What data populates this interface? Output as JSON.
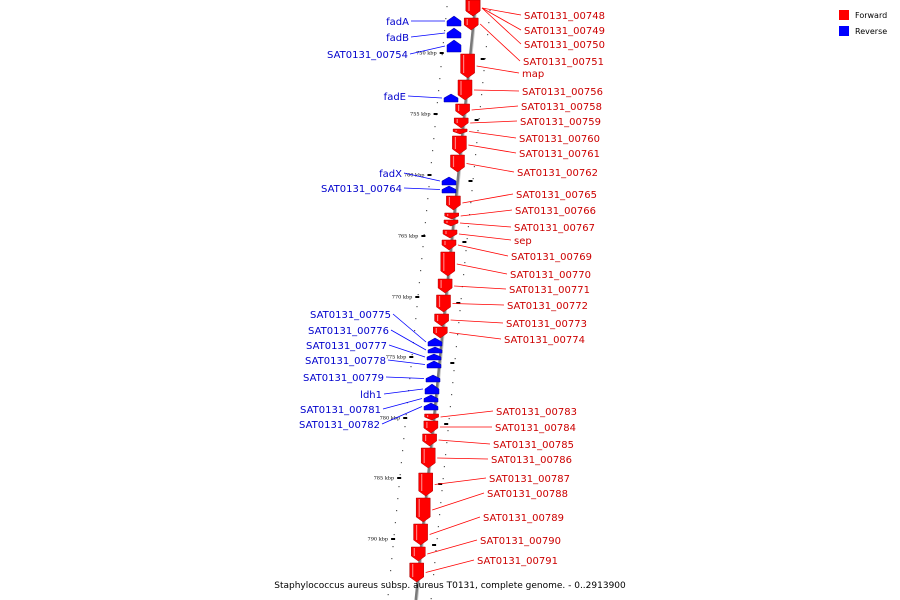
{
  "caption": "Staphylococcus aureus subsp. aureus T0131, complete genome. - 0..2913900",
  "legend": [
    {
      "label": "Forward",
      "color": "#ff0000"
    },
    {
      "label": "Reverse",
      "color": "#0000ff"
    }
  ],
  "colors": {
    "forward": "#ff0000",
    "reverse": "#0000ff",
    "backbone": "#7a7a7a"
  },
  "kbp_marks": [
    {
      "label": "750 kbp",
      "kbp": 750
    },
    {
      "label": "755 kbp",
      "kbp": 755
    },
    {
      "label": "760 kbp",
      "kbp": 760
    },
    {
      "label": "765 kbp",
      "kbp": 765
    },
    {
      "label": "770 kbp",
      "kbp": 770
    },
    {
      "label": "775 kbp",
      "kbp": 775
    },
    {
      "label": "780 kbp",
      "kbp": 780
    },
    {
      "label": "785 kbp",
      "kbp": 785
    },
    {
      "label": "790 kbp",
      "kbp": 790
    }
  ],
  "reverse_genes": [
    "fadA",
    "fadB",
    "SAT0131_00754",
    "fadE",
    "fadX",
    "SAT0131_00764",
    "SAT0131_00775",
    "SAT0131_00776",
    "SAT0131_00777",
    "SAT0131_00778",
    "SAT0131_00779",
    "ldh1",
    "SAT0131_00781",
    "SAT0131_00782"
  ],
  "forward_genes": [
    "SAT0131_00748",
    "SAT0131_00749",
    "SAT0131_00750",
    "SAT0131_00751",
    "map",
    "SAT0131_00756",
    "SAT0131_00758",
    "SAT0131_00759",
    "SAT0131_00760",
    "SAT0131_00761",
    "SAT0131_00762",
    "SAT0131_00765",
    "SAT0131_00766",
    "SAT0131_00767",
    "sep",
    "SAT0131_00769",
    "SAT0131_00770",
    "SAT0131_00771",
    "SAT0131_00772",
    "SAT0131_00773",
    "SAT0131_00774",
    "SAT0131_00783",
    "SAT0131_00784",
    "SAT0131_00785",
    "SAT0131_00786",
    "SAT0131_00787",
    "SAT0131_00788",
    "SAT0131_00789",
    "SAT0131_00790",
    "SAT0131_00791"
  ]
}
